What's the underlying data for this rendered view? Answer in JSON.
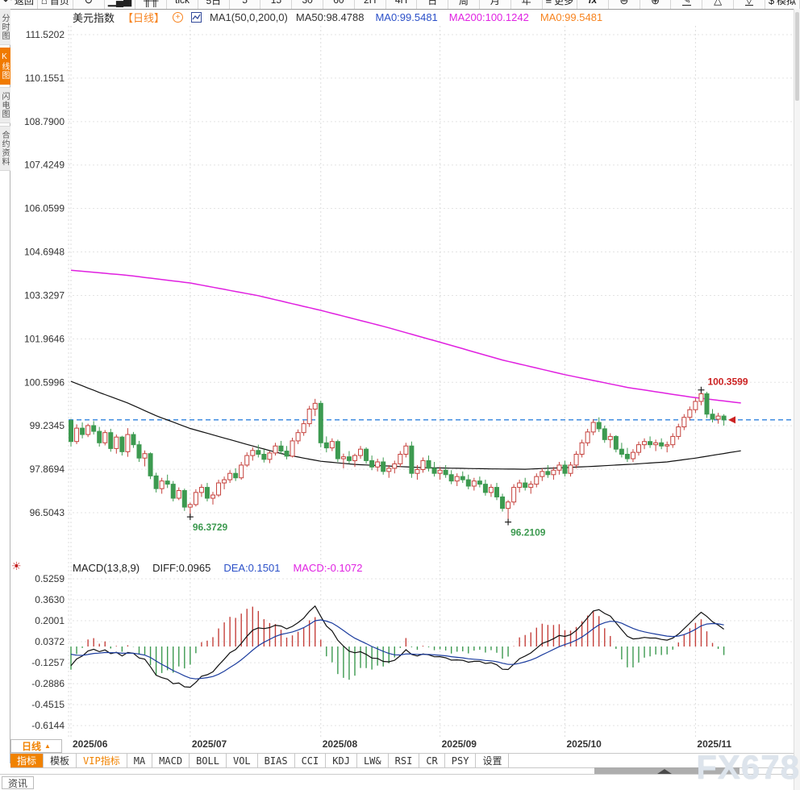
{
  "toolbar": {
    "items": [
      {
        "key": "back",
        "glyph": "↶",
        "label": "返回"
      },
      {
        "key": "home",
        "glyph": "⌂",
        "label": "首页"
      },
      {
        "key": "refresh",
        "glyph": "↻",
        "label": ""
      },
      {
        "key": "bar-chart",
        "glyph": "▁▄▇",
        "label": ""
      },
      {
        "key": "volume-columns",
        "glyph": "╫╫",
        "label": ""
      },
      {
        "key": "tick",
        "glyph": "",
        "label": "tick"
      },
      {
        "key": "period-5d",
        "glyph": "",
        "label": "5日"
      },
      {
        "key": "period-5",
        "glyph": "",
        "label": "5"
      },
      {
        "key": "period-15",
        "glyph": "",
        "label": "15"
      },
      {
        "key": "period-30",
        "glyph": "",
        "label": "30"
      },
      {
        "key": "period-60",
        "glyph": "",
        "label": "60"
      },
      {
        "key": "period-2h",
        "glyph": "",
        "label": "2H"
      },
      {
        "key": "period-4h",
        "glyph": "",
        "label": "4H"
      },
      {
        "key": "period-day",
        "glyph": "",
        "label": "日"
      },
      {
        "key": "period-week",
        "glyph": "",
        "label": "周"
      },
      {
        "key": "period-month",
        "glyph": "",
        "label": "月"
      },
      {
        "key": "period-year",
        "glyph": "",
        "label": "年"
      },
      {
        "key": "more",
        "glyph": "≡",
        "label": "更多"
      },
      {
        "key": "fx-indicator",
        "glyph": "",
        "label": "fx",
        "italic": true
      },
      {
        "key": "zoom-out",
        "glyph": "⊖",
        "label": ""
      },
      {
        "key": "zoom-in",
        "glyph": "⊕",
        "label": ""
      },
      {
        "key": "draw",
        "glyph": "✎",
        "label": "",
        "underline": true
      },
      {
        "key": "triangle-up",
        "glyph": "△",
        "label": ""
      },
      {
        "key": "triangle-down",
        "glyph": "▽",
        "label": "",
        "underline": true
      },
      {
        "key": "simulate",
        "glyph": "$",
        "label": "模拟"
      }
    ]
  },
  "left_tabs": [
    {
      "key": "timeshare",
      "label": "分时图",
      "selected": false
    },
    {
      "key": "kline",
      "label": "K线图",
      "selected": true
    },
    {
      "key": "lightning",
      "label": "闪电图",
      "selected": false
    },
    {
      "key": "contract-info",
      "label": "合约资料",
      "selected": false
    }
  ],
  "title_bar": {
    "symbol": "美元指数",
    "period": "【日线】",
    "plus_glyph": "+",
    "ma_settings": "MA1(50,0,200,0)",
    "ma_values": [
      {
        "label": "MA50:98.4788",
        "color": "#333333"
      },
      {
        "label": "MA0:99.5481",
        "color": "#2b50c8"
      },
      {
        "label": "MA200:100.1242",
        "color": "#e022e2"
      },
      {
        "label": "MA0:99.5481",
        "color": "#f7831e"
      }
    ]
  },
  "macd_header": {
    "gear_glyph": "☀",
    "title": "MACD(13,8,9)",
    "diff": "DIFF:0.0965",
    "dea": "DEA:0.1501",
    "macd": "MACD:-0.1072",
    "diff_color": "#222222",
    "dea_color": "#2b50c8",
    "macd_color": "#e022e2"
  },
  "bottom": {
    "period_button": "日线",
    "period_tri": "▲",
    "tabs": [
      {
        "key": "indicator",
        "label": "指标",
        "selected": true
      },
      {
        "key": "template",
        "label": "模板"
      },
      {
        "key": "vip-indicator",
        "label": "VIP指标",
        "vip": true
      },
      {
        "key": "ma",
        "label": "MA"
      },
      {
        "key": "macd",
        "label": "MACD"
      },
      {
        "key": "boll",
        "label": "BOLL"
      },
      {
        "key": "vol",
        "label": "VOL"
      },
      {
        "key": "bias",
        "label": "BIAS"
      },
      {
        "key": "cci",
        "label": "CCI"
      },
      {
        "key": "kdj",
        "label": "KDJ"
      },
      {
        "key": "lwr",
        "label": "LW&"
      },
      {
        "key": "rsi",
        "label": "RSI"
      },
      {
        "key": "cr",
        "label": "CR"
      },
      {
        "key": "psy",
        "label": "PSY"
      },
      {
        "key": "settings",
        "label": "设置"
      }
    ],
    "news_tab": "资讯"
  },
  "watermark": "FX678",
  "chart_data": {
    "type": "candlestick",
    "title": "美元指数 日线",
    "indicator": "MACD(13,8,9)",
    "y_axis_ticks": [
      "111.5202",
      "110.1551",
      "108.7900",
      "107.4249",
      "106.0599",
      "104.6948",
      "103.3297",
      "101.9646",
      "100.5996",
      "99.2345",
      "97.8694",
      "96.5043"
    ],
    "macd_axis_ticks": [
      "0.5259",
      "0.3630",
      "0.2001",
      "0.0372",
      "-0.1257",
      "-0.2886",
      "-0.4515",
      "-0.6144"
    ],
    "x_labels": [
      "2025/06",
      "2025/07",
      "2025/08",
      "2025/09",
      "2025/10",
      "2025/11"
    ],
    "month_start_indices": [
      0,
      21,
      44,
      65,
      87,
      110
    ],
    "current_price_line": 99.42,
    "high_annotation": {
      "index": 111,
      "text": "100.3599"
    },
    "low_annotations": [
      {
        "index": 21,
        "price": 96.3729,
        "text": "96.3729"
      },
      {
        "index": 77,
        "price": 96.2109,
        "text": "96.2109"
      }
    ],
    "ma50_keypoints": [
      [
        0,
        100.63
      ],
      [
        5,
        100.28
      ],
      [
        10,
        99.95
      ],
      [
        15,
        99.55
      ],
      [
        21,
        99.15
      ],
      [
        27,
        98.85
      ],
      [
        33,
        98.55
      ],
      [
        38,
        98.32
      ],
      [
        44,
        98.12
      ],
      [
        50,
        98.02
      ],
      [
        56,
        97.97
      ],
      [
        62,
        97.92
      ],
      [
        68,
        97.9
      ],
      [
        74,
        97.88
      ],
      [
        80,
        97.87
      ],
      [
        87,
        97.92
      ],
      [
        93,
        97.97
      ],
      [
        99,
        98.03
      ],
      [
        105,
        98.1
      ],
      [
        110,
        98.22
      ],
      [
        118,
        98.45
      ]
    ],
    "ma200_keypoints": [
      [
        0,
        104.12
      ],
      [
        10,
        103.96
      ],
      [
        21,
        103.72
      ],
      [
        33,
        103.32
      ],
      [
        44,
        102.86
      ],
      [
        55,
        102.36
      ],
      [
        65,
        101.86
      ],
      [
        76,
        101.3
      ],
      [
        87,
        100.84
      ],
      [
        98,
        100.44
      ],
      [
        109,
        100.14
      ],
      [
        118,
        99.95
      ]
    ],
    "candles": [
      [
        99.4,
        99.45,
        98.58,
        98.74
      ],
      [
        98.74,
        99.28,
        98.66,
        99.16
      ],
      [
        99.16,
        99.34,
        98.84,
        98.96
      ],
      [
        98.96,
        99.3,
        98.88,
        99.24
      ],
      [
        99.24,
        99.38,
        98.96,
        99.06
      ],
      [
        99.06,
        99.2,
        98.58,
        98.7
      ],
      [
        98.7,
        99.1,
        98.62,
        99.02
      ],
      [
        99.02,
        99.14,
        98.42,
        98.52
      ],
      [
        98.52,
        98.96,
        98.36,
        98.88
      ],
      [
        98.88,
        98.92,
        98.3,
        98.42
      ],
      [
        98.42,
        99.16,
        98.26,
        98.96
      ],
      [
        98.96,
        99.04,
        98.54,
        98.64
      ],
      [
        98.64,
        98.76,
        98.1,
        98.22
      ],
      [
        98.22,
        98.46,
        97.96,
        98.36
      ],
      [
        98.36,
        98.4,
        97.56,
        97.66
      ],
      [
        97.66,
        97.76,
        97.14,
        97.26
      ],
      [
        97.26,
        97.6,
        97.1,
        97.5
      ],
      [
        97.5,
        97.7,
        97.28,
        97.4
      ],
      [
        97.4,
        97.5,
        96.86,
        96.96
      ],
      [
        96.96,
        97.3,
        96.9,
        97.2
      ],
      [
        97.2,
        97.26,
        96.56,
        96.68
      ],
      [
        96.68,
        96.82,
        96.3729,
        96.76
      ],
      [
        96.76,
        97.24,
        96.7,
        97.14
      ],
      [
        97.14,
        97.4,
        97.0,
        97.3
      ],
      [
        97.3,
        97.44,
        96.86,
        96.96
      ],
      [
        96.96,
        97.16,
        96.76,
        97.06
      ],
      [
        97.06,
        97.54,
        97.0,
        97.44
      ],
      [
        97.44,
        97.64,
        97.24,
        97.54
      ],
      [
        97.54,
        97.84,
        97.44,
        97.74
      ],
      [
        97.74,
        97.9,
        97.5,
        97.6
      ],
      [
        97.6,
        98.1,
        97.54,
        98.0
      ],
      [
        98.0,
        98.4,
        97.94,
        98.3
      ],
      [
        98.3,
        98.56,
        98.14,
        98.46
      ],
      [
        98.46,
        98.64,
        98.24,
        98.34
      ],
      [
        98.34,
        98.5,
        98.08,
        98.18
      ],
      [
        98.18,
        98.44,
        98.06,
        98.38
      ],
      [
        98.38,
        98.7,
        98.3,
        98.6
      ],
      [
        98.6,
        98.76,
        98.34,
        98.44
      ],
      [
        98.44,
        98.6,
        98.18,
        98.28
      ],
      [
        98.28,
        98.86,
        98.24,
        98.76
      ],
      [
        98.76,
        99.12,
        98.66,
        99.02
      ],
      [
        99.02,
        99.4,
        98.92,
        99.3
      ],
      [
        99.3,
        99.86,
        99.2,
        99.76
      ],
      [
        99.76,
        100.08,
        99.54,
        99.94
      ],
      [
        99.94,
        100.02,
        98.56,
        98.7
      ],
      [
        98.7,
        98.9,
        98.4,
        98.54
      ],
      [
        98.54,
        98.84,
        98.44,
        98.74
      ],
      [
        98.74,
        98.8,
        98.1,
        98.2
      ],
      [
        98.2,
        98.36,
        97.9,
        98.26
      ],
      [
        98.26,
        98.44,
        98.04,
        98.14
      ],
      [
        98.14,
        98.36,
        97.94,
        98.3
      ],
      [
        98.3,
        98.6,
        98.2,
        98.5
      ],
      [
        98.5,
        98.56,
        98.04,
        98.14
      ],
      [
        98.14,
        98.3,
        97.84,
        97.94
      ],
      [
        97.94,
        98.2,
        97.8,
        98.1
      ],
      [
        98.1,
        98.24,
        97.7,
        97.8
      ],
      [
        97.8,
        98.0,
        97.6,
        97.9
      ],
      [
        97.9,
        98.14,
        97.74,
        98.04
      ],
      [
        98.04,
        98.44,
        97.94,
        98.34
      ],
      [
        98.34,
        98.7,
        98.24,
        98.6
      ],
      [
        98.6,
        98.74,
        97.6,
        97.74
      ],
      [
        97.74,
        98.0,
        97.54,
        97.86
      ],
      [
        97.86,
        98.24,
        97.76,
        98.14
      ],
      [
        98.14,
        98.3,
        97.8,
        97.9
      ],
      [
        97.9,
        98.1,
        97.64,
        97.74
      ],
      [
        97.74,
        97.94,
        97.54,
        97.84
      ],
      [
        97.84,
        98.0,
        97.6,
        97.7
      ],
      [
        97.7,
        97.84,
        97.4,
        97.5
      ],
      [
        97.5,
        97.74,
        97.34,
        97.64
      ],
      [
        97.64,
        97.8,
        97.44,
        97.54
      ],
      [
        97.54,
        97.7,
        97.24,
        97.34
      ],
      [
        97.34,
        97.6,
        97.2,
        97.5
      ],
      [
        97.5,
        97.64,
        97.3,
        97.4
      ],
      [
        97.4,
        97.54,
        97.04,
        97.14
      ],
      [
        97.14,
        97.4,
        97.0,
        97.3
      ],
      [
        97.3,
        97.44,
        96.9,
        97.0
      ],
      [
        97.0,
        97.1,
        96.54,
        96.64
      ],
      [
        96.64,
        96.9,
        96.2109,
        96.84
      ],
      [
        96.84,
        97.4,
        96.74,
        97.3
      ],
      [
        97.3,
        97.54,
        97.14,
        97.44
      ],
      [
        97.44,
        97.6,
        97.2,
        97.3
      ],
      [
        97.3,
        97.5,
        97.1,
        97.4
      ],
      [
        97.4,
        97.74,
        97.3,
        97.64
      ],
      [
        97.64,
        97.9,
        97.5,
        97.8
      ],
      [
        97.8,
        98.0,
        97.6,
        97.7
      ],
      [
        97.7,
        97.94,
        97.54,
        97.84
      ],
      [
        97.84,
        98.1,
        97.7,
        98.0
      ],
      [
        98.0,
        98.14,
        97.64,
        97.74
      ],
      [
        97.74,
        98.1,
        97.64,
        98.0
      ],
      [
        98.0,
        98.44,
        97.9,
        98.34
      ],
      [
        98.34,
        98.8,
        98.24,
        98.7
      ],
      [
        98.7,
        99.14,
        98.6,
        99.04
      ],
      [
        99.04,
        99.44,
        98.94,
        99.34
      ],
      [
        99.34,
        99.5,
        99.04,
        99.14
      ],
      [
        99.14,
        99.24,
        98.7,
        98.8
      ],
      [
        98.8,
        99.0,
        98.54,
        98.9
      ],
      [
        98.9,
        98.94,
        98.4,
        98.5
      ],
      [
        98.5,
        98.7,
        98.24,
        98.34
      ],
      [
        98.34,
        98.54,
        98.1,
        98.2
      ],
      [
        98.2,
        98.5,
        98.1,
        98.4
      ],
      [
        98.4,
        98.74,
        98.3,
        98.64
      ],
      [
        98.64,
        98.84,
        98.5,
        98.74
      ],
      [
        98.74,
        98.9,
        98.54,
        98.64
      ],
      [
        98.64,
        98.8,
        98.44,
        98.7
      ],
      [
        98.7,
        98.84,
        98.5,
        98.6
      ],
      [
        98.6,
        98.74,
        98.4,
        98.64
      ],
      [
        98.64,
        99.0,
        98.54,
        98.9
      ],
      [
        98.9,
        99.3,
        98.8,
        99.2
      ],
      [
        99.2,
        99.6,
        99.1,
        99.5
      ],
      [
        99.5,
        99.84,
        99.4,
        99.74
      ],
      [
        99.74,
        100.1,
        99.64,
        100.0
      ],
      [
        100.0,
        100.3599,
        99.88,
        100.24
      ],
      [
        100.24,
        100.3,
        99.48,
        99.6
      ],
      [
        99.6,
        99.76,
        99.34,
        99.44
      ],
      [
        99.44,
        99.64,
        99.3,
        99.54
      ],
      [
        99.54,
        99.6,
        99.24,
        99.42
      ]
    ]
  }
}
